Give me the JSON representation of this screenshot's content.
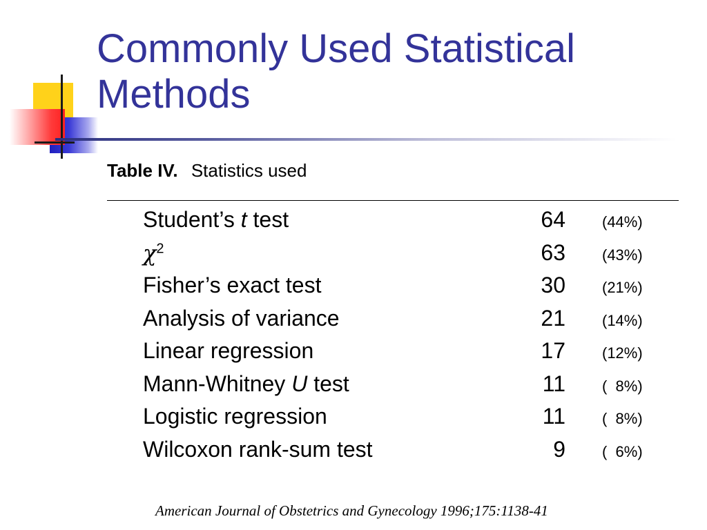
{
  "title": "Commonly Used Statistical Methods",
  "caption": {
    "label": "Table IV.",
    "text": "Statistics used"
  },
  "rows": [
    {
      "name_pre": "Student’s ",
      "name_ital": "t",
      "name_post": " test",
      "count": "64",
      "pct": "(44%)"
    },
    {
      "name_symbol": "χ",
      "name_sup": "2",
      "count": "63",
      "pct": "(43%)"
    },
    {
      "name": "Fisher’s exact test",
      "count": "30",
      "pct": "(21%)"
    },
    {
      "name": "Analysis of variance",
      "count": "21",
      "pct": "(14%)"
    },
    {
      "name": "Linear regression",
      "count": "17",
      "pct": "(12%)"
    },
    {
      "name_pre": "Mann-Whitney ",
      "name_ital": "U",
      "name_post": " test",
      "count": "11",
      "pct": "(  8%)"
    },
    {
      "name": "Logistic regression",
      "count": "11",
      "pct": "(  8%)"
    },
    {
      "name": "Wilcoxon rank-sum test",
      "count": "9",
      "pct": "(  6%)"
    }
  ],
  "citation": "American Journal of Obstetrics and Gynecology 1996;175:1138-41",
  "colors": {
    "title": "#333399",
    "deco_yellow": "#ffd21a",
    "deco_blue": "#1f1fbf",
    "deco_red": "#ff2020"
  }
}
